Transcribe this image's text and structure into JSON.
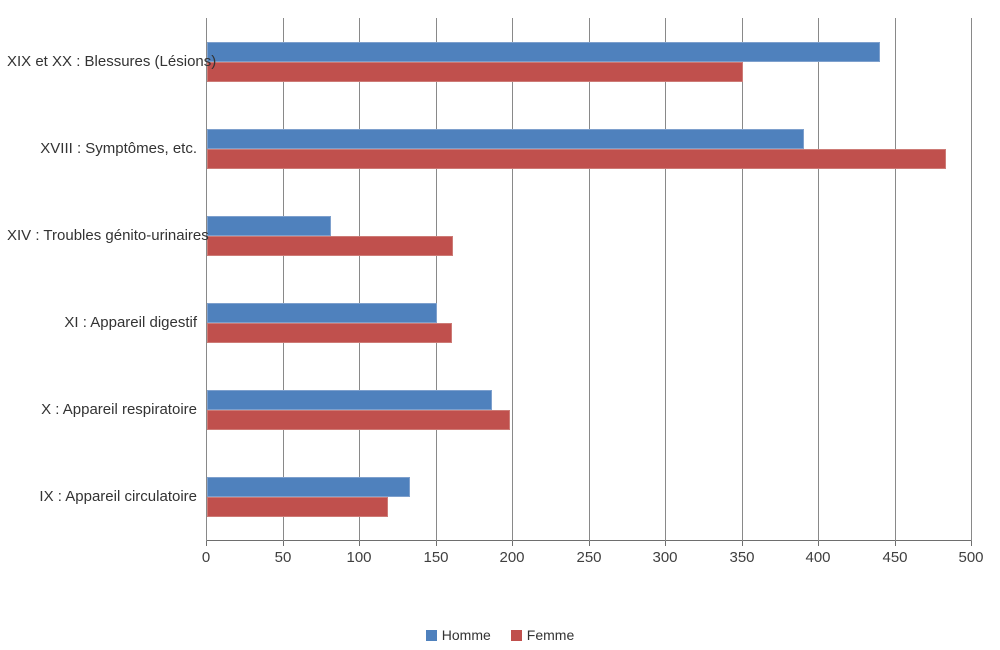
{
  "chart_data": {
    "type": "bar",
    "orientation": "horizontal",
    "title": "",
    "categories": [
      "XIX et XX : Blessures (Lésions)",
      "XVIII : Symptômes, etc.",
      "XIV : Troubles génito-urinaires",
      "XI : Appareil digestif",
      "X : Appareil respiratoire",
      "IX : Appareil circulatoire"
    ],
    "series": [
      {
        "name": "Homme",
        "color": "#4F81BD",
        "border_color": "#7EA0CD",
        "values": [
          440,
          390,
          81,
          150,
          186,
          133
        ]
      },
      {
        "name": "Femme",
        "color": "#C0504D",
        "border_color": "#CD7B76",
        "values": [
          350,
          483,
          161,
          160,
          198,
          118
        ]
      }
    ],
    "xlim": [
      0,
      500
    ],
    "x_ticks": [
      0,
      50,
      100,
      150,
      200,
      250,
      300,
      350,
      400,
      450,
      500
    ],
    "grid": "vertical",
    "legend_position": "bottom",
    "legend": [
      "Homme",
      "Femme"
    ],
    "colors": {
      "gridline": "#898989",
      "axis": "#6e6e6e",
      "text": "#3f3f3f",
      "background": "#ffffff"
    }
  }
}
